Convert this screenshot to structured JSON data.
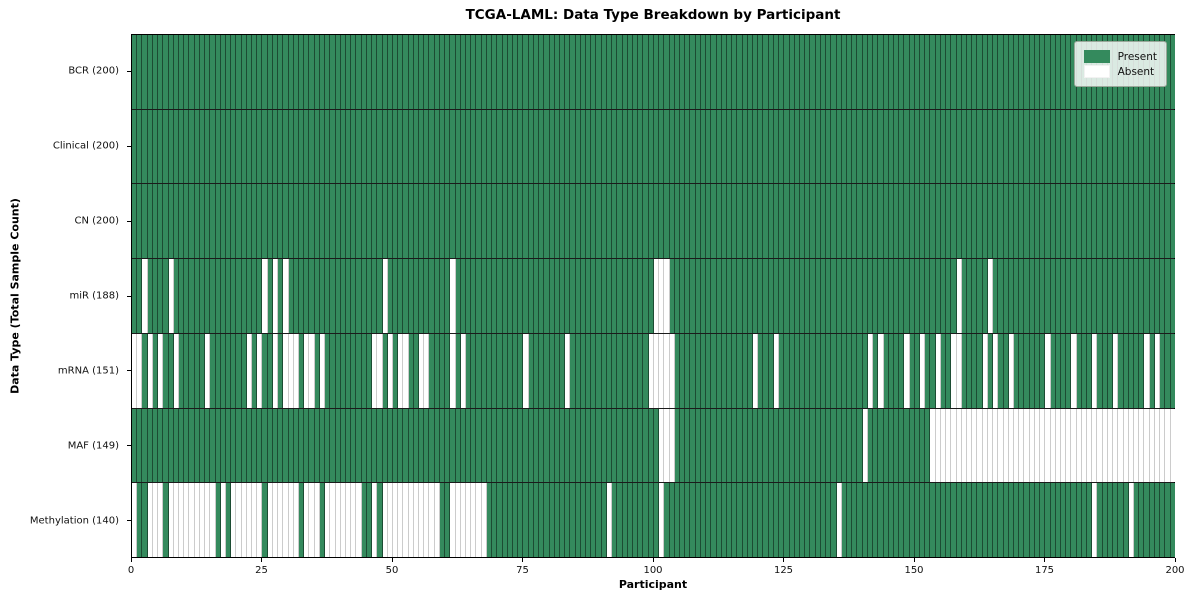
{
  "title": "TCGA-LAML: Data Type Breakdown by Participant",
  "legend": {
    "present_label": "Present",
    "absent_label": "Absent"
  },
  "colors": {
    "present": "#348a5d",
    "absent": "#ffffff",
    "grid_on_green": "rgba(0,0,0,0.45)",
    "grid_on_white": "#cccccc"
  },
  "chart_data": {
    "type": "heatmap",
    "title": "TCGA-LAML: Data Type Breakdown by Participant",
    "xlabel": "Participant",
    "ylabel": "Data Type (Total Sample Count)",
    "legend_entries": [
      "Present",
      "Absent"
    ],
    "legend_position": "upper right",
    "n_participants": 200,
    "x_ticks": [
      0,
      25,
      50,
      75,
      100,
      125,
      150,
      175,
      200
    ],
    "xlim": [
      0,
      200
    ],
    "value_encoding": {
      "present": 1,
      "absent": 0
    },
    "rows": [
      {
        "label": "BCR (200)",
        "data_type": "BCR",
        "present_count": 200,
        "absent_participants": []
      },
      {
        "label": "Clinical (200)",
        "data_type": "Clinical",
        "present_count": 200,
        "absent_participants": []
      },
      {
        "label": "CN (200)",
        "data_type": "CN",
        "present_count": 200,
        "absent_participants": []
      },
      {
        "label": "miR (188)",
        "data_type": "miR",
        "present_count": 188,
        "absent_participants": [
          2,
          7,
          25,
          27,
          29,
          48,
          61,
          100,
          101,
          102,
          158,
          164
        ]
      },
      {
        "label": "mRNA (151)",
        "data_type": "mRNA",
        "present_count": 151,
        "absent_participants": [
          0,
          1,
          3,
          5,
          8,
          14,
          22,
          24,
          27,
          29,
          30,
          31,
          33,
          34,
          36,
          46,
          47,
          49,
          51,
          52,
          55,
          56,
          61,
          63,
          75,
          83,
          99,
          100,
          101,
          102,
          103,
          119,
          123,
          141,
          143,
          148,
          151,
          154,
          157,
          158,
          163,
          165,
          168,
          175,
          180,
          184,
          188,
          194,
          196
        ]
      },
      {
        "label": "MAF (149)",
        "data_type": "MAF",
        "present_count": 149,
        "absent_participants": [
          101,
          102,
          103,
          140,
          153,
          154,
          155,
          156,
          157,
          158,
          159,
          160,
          161,
          162,
          163,
          164,
          165,
          166,
          167,
          168,
          169,
          170,
          171,
          172,
          173,
          174,
          175,
          176,
          177,
          178,
          179,
          180,
          181,
          182,
          183,
          184,
          185,
          186,
          187,
          188,
          189,
          190,
          191,
          192,
          193,
          194,
          195,
          196,
          197,
          198,
          199
        ]
      },
      {
        "label": "Methylation (140)",
        "data_type": "Methylation",
        "present_count": 140,
        "absent_participants": [
          0,
          3,
          4,
          5,
          7,
          8,
          9,
          10,
          11,
          12,
          13,
          14,
          15,
          17,
          19,
          20,
          21,
          22,
          23,
          24,
          26,
          27,
          28,
          29,
          30,
          31,
          33,
          34,
          35,
          37,
          38,
          39,
          40,
          41,
          42,
          43,
          46,
          48,
          49,
          50,
          51,
          52,
          53,
          54,
          55,
          56,
          57,
          58,
          61,
          62,
          63,
          64,
          65,
          66,
          67,
          91,
          101,
          135,
          184,
          191
        ]
      }
    ]
  }
}
